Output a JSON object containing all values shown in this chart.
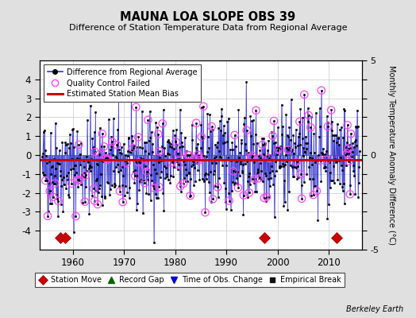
{
  "title": "MAUNA LOA SLOPE OBS 39",
  "subtitle": "Difference of Station Temperature Data from Regional Average",
  "ylabel": "Monthly Temperature Anomaly Difference (°C)",
  "xlabel_years": [
    1960,
    1970,
    1980,
    1990,
    2000,
    2010
  ],
  "ylim": [
    -5,
    5
  ],
  "xlim": [
    1953.5,
    2016.5
  ],
  "mean_bias": -0.25,
  "background_color": "#e0e0e0",
  "plot_bg_color": "#ffffff",
  "line_color": "#3333cc",
  "bias_color": "#cc0000",
  "qc_color": "#ff44ff",
  "station_move_years": [
    1957.5,
    1958.5,
    1997.5,
    2011.5
  ],
  "station_move_y": -4.35,
  "seed": 42
}
